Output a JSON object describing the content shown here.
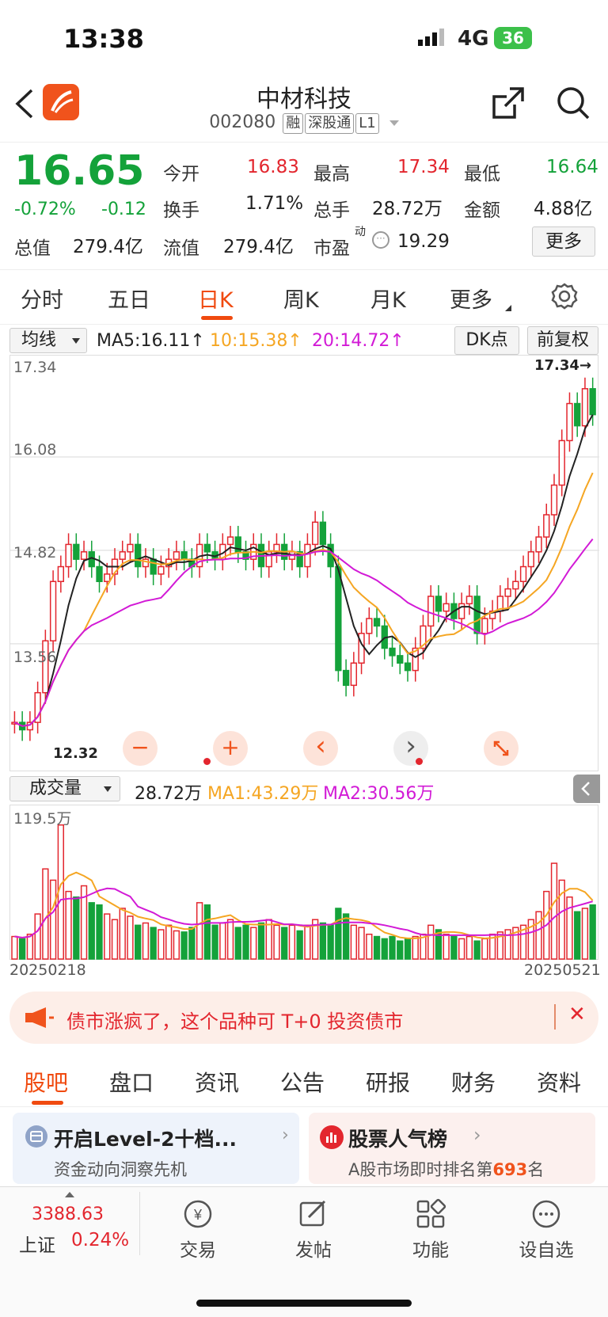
{
  "status": {
    "time": "13:38",
    "network": "4G",
    "battery": "36"
  },
  "nav": {
    "title": "中材科技",
    "code": "002080",
    "tags": [
      "融",
      "深股通",
      "L1"
    ]
  },
  "quote": {
    "price": "16.65",
    "pct": "-0.72%",
    "chg": "-0.12",
    "open_l": "今开",
    "open": "16.83",
    "high_l": "最高",
    "high": "17.34",
    "low_l": "最低",
    "low": "16.64",
    "turn_l": "换手",
    "turn": "1.71%",
    "vol_l": "总手",
    "vol": "28.72万",
    "amt_l": "金额",
    "amt": "4.88亿",
    "mcap_l": "总值",
    "mcap": "279.4亿",
    "fcap_l": "流值",
    "fcap": "279.4亿",
    "pe_l": "市盈",
    "pe_sup": "动",
    "pe": "19.29",
    "more": "更多"
  },
  "tabs": [
    "分时",
    "五日",
    "日K",
    "周K",
    "月K",
    "更多"
  ],
  "chart": {
    "ma_select": "均线",
    "ma5": "MA5:16.11↑",
    "ma10": "10:15.38↑",
    "ma20": "20:14.72↑",
    "dk": "DK点",
    "fq": "前复权",
    "y_labels": [
      "17.34",
      "16.08",
      "14.82",
      "13.56"
    ],
    "high_mark": "17.34→",
    "low_mark": "12.32",
    "vol_select": "成交量",
    "vol_val": "28.72万",
    "vma1": "MA1:43.29万",
    "vma2": "MA2:30.56万",
    "vol_max": "119.5万",
    "date_start": "20250218",
    "date_end": "20250521",
    "minus": "−",
    "plus": "+",
    "prev": "‹",
    "next": "›"
  },
  "chart_data": {
    "type": "candlestick",
    "price_range": [
      12.32,
      17.34
    ],
    "last_close": 16.65,
    "high": 17.34,
    "low": 12.32,
    "volume_max_wan": 119.5
  },
  "banner": {
    "text": "债市涨疯了，这个品种可 T+0 投资债市"
  },
  "btabs": [
    "股吧",
    "盘口",
    "资讯",
    "公告",
    "研报",
    "财务",
    "资料"
  ],
  "cards": [
    {
      "title": "开启Level-2十档...",
      "sub": "资金动向洞察先机"
    },
    {
      "title": "股票人气榜",
      "sub_pre": "A股市场即时排名第",
      "rank": "693",
      "sub_post": "名"
    }
  ],
  "bottom": {
    "index_val": "3388.63",
    "index_name": "上证",
    "index_pct": "0.24%",
    "items": [
      "交易",
      "发帖",
      "功能",
      "设自选"
    ]
  }
}
